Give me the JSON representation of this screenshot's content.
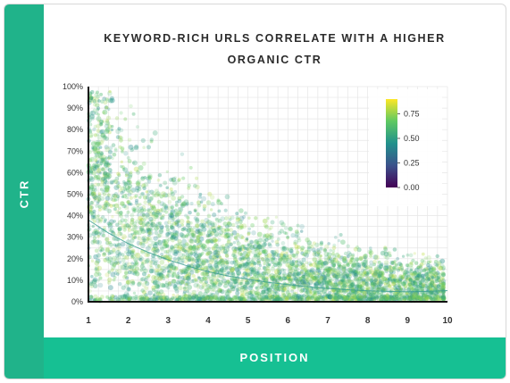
{
  "chart_data": {
    "type": "scatter",
    "title_lines": [
      "KEYWORD-RICH URLS CORRELATE WITH A HIGHER",
      "ORGANIC CTR"
    ],
    "xlabel": "POSITION",
    "ylabel": "CTR",
    "xlim": [
      1,
      10
    ],
    "ylim": [
      0,
      100
    ],
    "x_ticks": [
      "1",
      "2",
      "3",
      "4",
      "5",
      "6",
      "7",
      "8",
      "9",
      "10"
    ],
    "y_ticks": [
      "0%",
      "10%",
      "20%",
      "30%",
      "40%",
      "50%",
      "60%",
      "70%",
      "80%",
      "90%",
      "100%"
    ],
    "grid": true,
    "colorbar": {
      "placement": "top-right",
      "range": [
        0,
        0.9
      ],
      "ticks": [
        "0.00",
        "0.25",
        "0.50",
        "0.75"
      ],
      "colormap": [
        "#440154",
        "#3b528b",
        "#21918c",
        "#5ec962",
        "#fde725"
      ]
    },
    "trend_line": {
      "x": [
        1,
        1.5,
        2,
        2.5,
        3,
        3.5,
        4,
        4.5,
        5,
        5.5,
        6,
        6.5,
        7,
        7.5,
        8,
        8.5,
        9,
        9.5,
        10
      ],
      "y": [
        38,
        32,
        27,
        23,
        19.5,
        16.5,
        14,
        12,
        10.5,
        9,
        8,
        7,
        6.2,
        5.6,
        5.1,
        4.8,
        4.6,
        4.8,
        5.2
      ]
    },
    "scatter_model": {
      "points": 4200,
      "note_hidden": false
    }
  }
}
